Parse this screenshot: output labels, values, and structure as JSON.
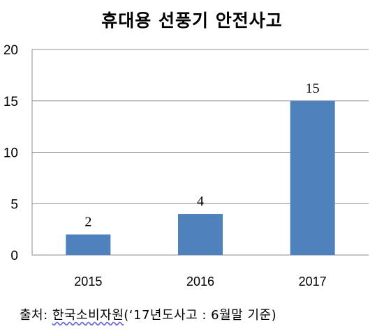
{
  "chart_data": {
    "type": "bar",
    "title": "휴대용 선풍기 안전사고",
    "categories": [
      "2015",
      "2016",
      "2017"
    ],
    "values": [
      2,
      4,
      15
    ],
    "data_labels": [
      "2",
      "4",
      "15"
    ],
    "ylim": [
      0,
      20
    ],
    "yticks": [
      "0",
      "5",
      "10",
      "15",
      "20"
    ],
    "grid": true,
    "legend": "none",
    "bar_color": "#4f81bd",
    "grid_color": "#8c8c8c"
  },
  "source": {
    "prefix": "출처: ",
    "org": "한국소비자원",
    "suffix": "(‘17년도사고 : 6월말 기준)"
  }
}
